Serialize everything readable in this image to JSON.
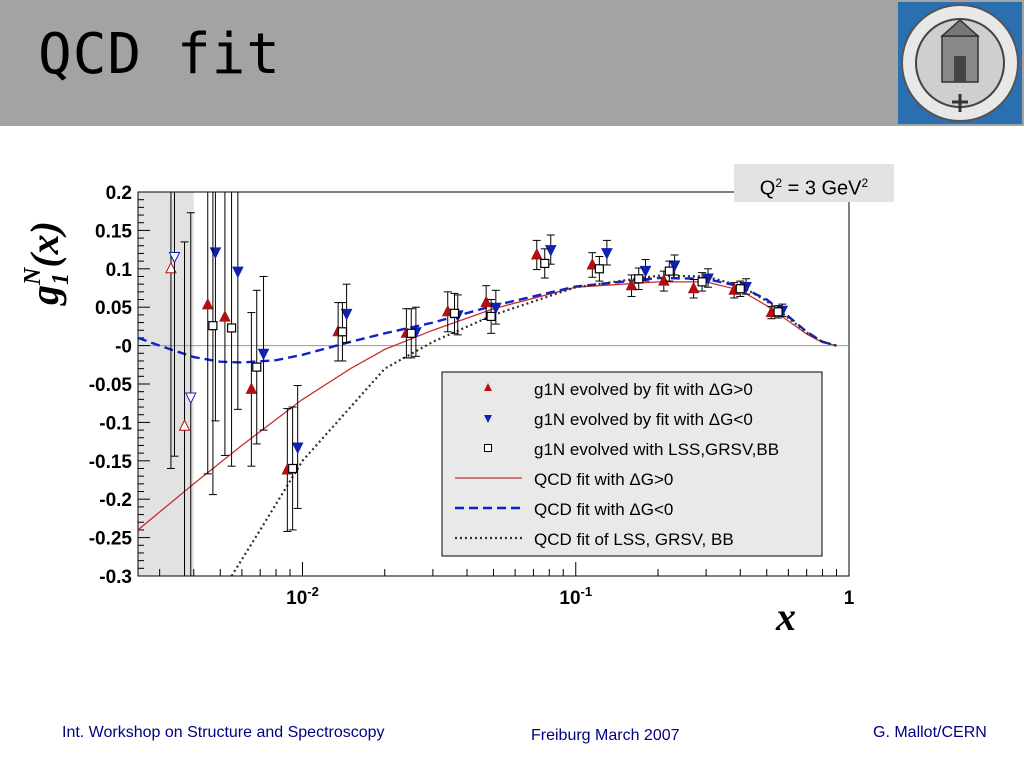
{
  "slide": {
    "title": "QCD fit",
    "footer_left": "Int. Workshop on Structure and Spectroscopy",
    "footer_center": "Freiburg March 2007",
    "footer_right": "G. Mallot/CERN",
    "logo": "freiburg-university-seal"
  },
  "chart_data": {
    "type": "scatter",
    "x_scale": "log",
    "xlim": [
      0.0025,
      1
    ],
    "ylim": [
      -0.3,
      0.2
    ],
    "xlabel": "x",
    "ylabel": "g1N(x)",
    "xticklabels": [
      "10-2",
      "10-1",
      "1"
    ],
    "yticks": [
      "0.2",
      "0.15",
      "0.1",
      "0.05",
      "-0",
      "-0.05",
      "-0.1",
      "-0.15",
      "-0.2",
      "-0.25",
      "-0.3"
    ],
    "annotation": "Q2 = 3 GeV2",
    "shaded_region_x": [
      0.0025,
      0.004
    ],
    "legend_position": "lower-right",
    "series": [
      {
        "name": "g1N evolved by fit with ΔG>0",
        "marker": "triangle-up",
        "color": "#b01010",
        "points": [
          [
            0.0033,
            0.1,
            0.26
          ],
          [
            0.0037,
            -0.105,
            0.24
          ],
          [
            0.0045,
            0.053,
            0.22
          ],
          [
            0.0052,
            0.037,
            0.18
          ],
          [
            0.0065,
            -0.057,
            0.1
          ],
          [
            0.0088,
            -0.162,
            0.08
          ],
          [
            0.0135,
            0.018,
            0.038
          ],
          [
            0.024,
            0.016,
            0.032
          ],
          [
            0.034,
            0.044,
            0.026
          ],
          [
            0.047,
            0.056,
            0.022
          ],
          [
            0.072,
            0.118,
            0.019
          ],
          [
            0.115,
            0.105,
            0.016
          ],
          [
            0.16,
            0.078,
            0.014
          ],
          [
            0.21,
            0.084,
            0.013
          ],
          [
            0.27,
            0.074,
            0.012
          ],
          [
            0.38,
            0.072,
            0.01
          ],
          [
            0.52,
            0.043,
            0.008
          ]
        ]
      },
      {
        "name": "g1N evolved by fit with ΔG<0",
        "marker": "triangle-down",
        "color": "#1020b0",
        "points": [
          [
            0.0034,
            0.116,
            0.26
          ],
          [
            0.0039,
            -0.067,
            0.24
          ],
          [
            0.0048,
            0.122,
            0.22
          ],
          [
            0.0058,
            0.097,
            0.18
          ],
          [
            0.0072,
            -0.01,
            0.1
          ],
          [
            0.0096,
            -0.132,
            0.08
          ],
          [
            0.0145,
            0.042,
            0.038
          ],
          [
            0.026,
            0.018,
            0.032
          ],
          [
            0.037,
            0.04,
            0.026
          ],
          [
            0.051,
            0.05,
            0.022
          ],
          [
            0.081,
            0.125,
            0.019
          ],
          [
            0.13,
            0.121,
            0.016
          ],
          [
            0.18,
            0.098,
            0.014
          ],
          [
            0.23,
            0.105,
            0.013
          ],
          [
            0.305,
            0.088,
            0.012
          ],
          [
            0.42,
            0.077,
            0.01
          ],
          [
            0.57,
            0.046,
            0.008
          ]
        ]
      },
      {
        "name": "g1N evolved with LSS,GRSV,BB",
        "marker": "square-open",
        "color": "#000000",
        "points": [
          [
            0.0047,
            0.026,
            0.22
          ],
          [
            0.0055,
            0.023,
            0.18
          ],
          [
            0.0068,
            -0.028,
            0.1
          ],
          [
            0.0092,
            -0.16,
            0.08
          ],
          [
            0.014,
            0.018,
            0.038
          ],
          [
            0.025,
            0.016,
            0.032
          ],
          [
            0.036,
            0.042,
            0.026
          ],
          [
            0.049,
            0.038,
            0.022
          ],
          [
            0.077,
            0.107,
            0.019
          ],
          [
            0.122,
            0.1,
            0.016
          ],
          [
            0.17,
            0.087,
            0.014
          ],
          [
            0.22,
            0.097,
            0.013
          ],
          [
            0.29,
            0.083,
            0.012
          ],
          [
            0.4,
            0.074,
            0.01
          ],
          [
            0.55,
            0.044,
            0.008
          ]
        ]
      }
    ],
    "curves": [
      {
        "name": "QCD fit with ΔG>0",
        "style": "solid",
        "color": "#c83030",
        "points": [
          [
            0.0025,
            -0.24
          ],
          [
            0.004,
            -0.18
          ],
          [
            0.006,
            -0.13
          ],
          [
            0.01,
            -0.07
          ],
          [
            0.015,
            -0.03
          ],
          [
            0.02,
            -0.005
          ],
          [
            0.03,
            0.02
          ],
          [
            0.05,
            0.048
          ],
          [
            0.1,
            0.076
          ],
          [
            0.2,
            0.083
          ],
          [
            0.3,
            0.083
          ],
          [
            0.4,
            0.072
          ],
          [
            0.5,
            0.052
          ],
          [
            0.6,
            0.032
          ],
          [
            0.7,
            0.015
          ],
          [
            0.8,
            0.004
          ],
          [
            0.9,
            0.0
          ]
        ]
      },
      {
        "name": "QCD fit with ΔG<0",
        "style": "dashed",
        "color": "#1020d0",
        "points": [
          [
            0.0025,
            0.01
          ],
          [
            0.003,
            0.0
          ],
          [
            0.004,
            -0.015
          ],
          [
            0.005,
            -0.021
          ],
          [
            0.006,
            -0.022
          ],
          [
            0.008,
            -0.019
          ],
          [
            0.01,
            -0.012
          ],
          [
            0.015,
            0.005
          ],
          [
            0.02,
            0.016
          ],
          [
            0.03,
            0.03
          ],
          [
            0.05,
            0.052
          ],
          [
            0.1,
            0.077
          ],
          [
            0.2,
            0.088
          ],
          [
            0.3,
            0.087
          ],
          [
            0.4,
            0.077
          ],
          [
            0.5,
            0.06
          ],
          [
            0.6,
            0.038
          ],
          [
            0.7,
            0.018
          ],
          [
            0.8,
            0.005
          ],
          [
            0.9,
            0.0
          ]
        ]
      },
      {
        "name": "QCD fit of LSS, GRSV, BB",
        "style": "dotted",
        "color": "#303030",
        "points": [
          [
            0.0055,
            -0.3
          ],
          [
            0.007,
            -0.24
          ],
          [
            0.01,
            -0.15
          ],
          [
            0.015,
            -0.08
          ],
          [
            0.02,
            -0.03
          ],
          [
            0.03,
            0.005
          ],
          [
            0.05,
            0.04
          ],
          [
            0.1,
            0.076
          ],
          [
            0.2,
            0.091
          ],
          [
            0.3,
            0.09
          ],
          [
            0.4,
            0.078
          ],
          [
            0.5,
            0.058
          ],
          [
            0.6,
            0.036
          ],
          [
            0.7,
            0.017
          ],
          [
            0.8,
            0.005
          ],
          [
            0.9,
            0.0
          ]
        ]
      }
    ]
  }
}
